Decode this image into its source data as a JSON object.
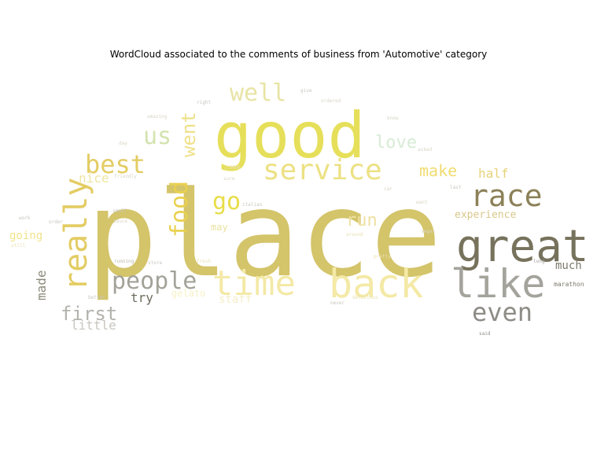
{
  "chart_data": {
    "type": "wordcloud",
    "title": "WordCloud associated to the comments of business from 'Automotive' category",
    "words": [
      {
        "text": "place",
        "color": "#d4c46a"
      },
      {
        "text": "good",
        "color": "#e6df5a"
      },
      {
        "text": "great",
        "color": "#76725c"
      },
      {
        "text": "service",
        "color": "#ece184"
      },
      {
        "text": "time",
        "color": "#f4e9a6"
      },
      {
        "text": "back",
        "color": "#f4e9a6"
      },
      {
        "text": "like",
        "color": "#a4a39c"
      },
      {
        "text": "race",
        "color": "#8c8158"
      },
      {
        "text": "really",
        "color": "#e3cc63"
      },
      {
        "text": "people",
        "color": "#a3a299"
      },
      {
        "text": "best",
        "color": "#e3cc63"
      },
      {
        "text": "well",
        "color": "#e8e4a5"
      },
      {
        "text": "food",
        "color": "#e9d14e"
      },
      {
        "text": "go",
        "color": "#e8dd48"
      },
      {
        "text": "went",
        "color": "#efe18a"
      },
      {
        "text": "us",
        "color": "#d4e3b0"
      },
      {
        "text": "love",
        "color": "#d8ecd6"
      },
      {
        "text": "make",
        "color": "#f0dc70"
      },
      {
        "text": "even",
        "color": "#8e8c86"
      },
      {
        "text": "first",
        "color": "#b3b2ac"
      },
      {
        "text": "run",
        "color": "#eee1a3"
      },
      {
        "text": "experience",
        "color": "#d8c78a"
      },
      {
        "text": "much",
        "color": "#7c7a6c"
      },
      {
        "text": "half",
        "color": "#e7d378"
      },
      {
        "text": "made",
        "color": "#8c8a7a"
      },
      {
        "text": "staff",
        "color": "#f4eec8"
      },
      {
        "text": "try",
        "color": "#6e6c60"
      },
      {
        "text": "may",
        "color": "#e8e2a0"
      },
      {
        "text": "nice",
        "color": "#efe5a0"
      },
      {
        "text": "going",
        "color": "#f2e48a"
      },
      {
        "text": "little",
        "color": "#c8c6be"
      },
      {
        "text": "gelato",
        "color": "#f7f1c6"
      },
      {
        "text": "marathon",
        "color": "#7c7a6c"
      },
      {
        "text": "around",
        "color": "#e8e0b0"
      },
      {
        "text": "delicious",
        "color": "#e8e0b0"
      },
      {
        "text": "friendly",
        "color": "#d8d5c4"
      },
      {
        "text": "running",
        "color": "#b9b6a8"
      },
      {
        "text": "better",
        "color": "#c8c6be"
      },
      {
        "text": "vegas",
        "color": "#d8d5c4"
      },
      {
        "text": "sauce",
        "color": "#d8d5c4"
      },
      {
        "text": "small",
        "color": "#c8c6be"
      },
      {
        "text": "order",
        "color": "#c8c6be"
      },
      {
        "text": "fresh",
        "color": "#e8e0b0"
      },
      {
        "text": "italian",
        "color": "#c8c6be"
      },
      {
        "text": "pretty",
        "color": "#e8e0b0"
      },
      {
        "text": "said",
        "color": "#8e8c86"
      },
      {
        "text": "long",
        "color": "#a4a39c"
      },
      {
        "text": "still",
        "color": "#e8e0b0"
      },
      {
        "text": "work",
        "color": "#c8c6be"
      },
      {
        "text": "day",
        "color": "#d8d5c4"
      },
      {
        "text": "amazing",
        "color": "#d8d5c4"
      },
      {
        "text": "right",
        "color": "#c8c6be"
      },
      {
        "text": "ordered",
        "color": "#d8d5c4"
      },
      {
        "text": "asked",
        "color": "#d8d5c4"
      },
      {
        "text": "come",
        "color": "#e8e0b0"
      },
      {
        "text": "sure",
        "color": "#d8d5c4"
      },
      {
        "text": "store",
        "color": "#c8c6be"
      },
      {
        "text": "never",
        "color": "#c8c6be"
      },
      {
        "text": "car",
        "color": "#d8d5c4"
      },
      {
        "text": "last",
        "color": "#c8c6be"
      },
      {
        "text": "want",
        "color": "#d8d5c4"
      },
      {
        "text": "know",
        "color": "#d8d5c4"
      },
      {
        "text": "give",
        "color": "#c8c6be"
      }
    ]
  }
}
